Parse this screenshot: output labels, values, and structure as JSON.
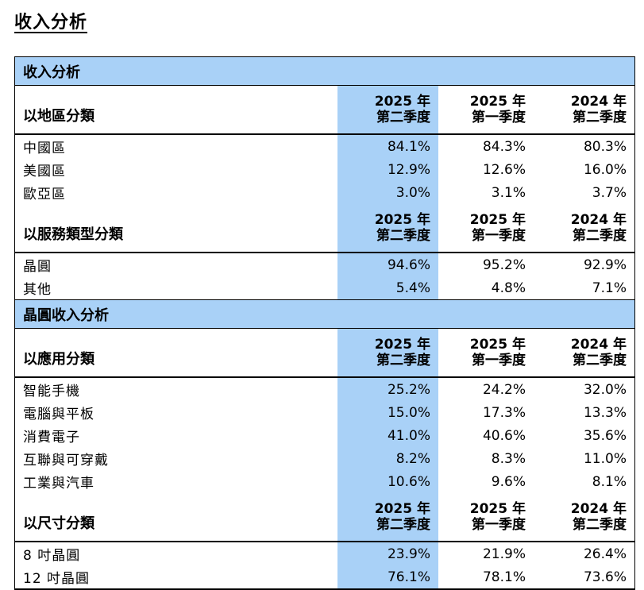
{
  "page_title": "收入分析",
  "table": {
    "section_title": "收入分析",
    "period_headers": [
      {
        "year": "2025 年",
        "quarter": "第二季度"
      },
      {
        "year": "2025 年",
        "quarter": "第一季度"
      },
      {
        "year": "2024 年",
        "quarter": "第二季度"
      }
    ],
    "groups": [
      {
        "label": "以地區分類",
        "rows": [
          {
            "name": "中國區",
            "values": [
              "84.1%",
              "84.3%",
              "80.3%"
            ]
          },
          {
            "name": "美國區",
            "values": [
              "12.9%",
              "12.6%",
              "16.0%"
            ]
          },
          {
            "name": "歐亞區",
            "values": [
              "3.0%",
              "3.1%",
              "3.7%"
            ]
          }
        ]
      },
      {
        "label": "以服務類型分類",
        "rows": [
          {
            "name": "晶圓",
            "values": [
              "94.6%",
              "95.2%",
              "92.9%"
            ]
          },
          {
            "name": "其他",
            "values": [
              "5.4%",
              "4.8%",
              "7.1%"
            ]
          }
        ]
      }
    ],
    "section2_title": "晶圓收入分析",
    "groups2": [
      {
        "label": "以應用分類",
        "rows": [
          {
            "name": "智能手機",
            "values": [
              "25.2%",
              "24.2%",
              "32.0%"
            ]
          },
          {
            "name": "電腦與平板",
            "values": [
              "15.0%",
              "17.3%",
              "13.3%"
            ]
          },
          {
            "name": "消費電子",
            "values": [
              "41.0%",
              "40.6%",
              "35.6%"
            ]
          },
          {
            "name": "互聯與可穿戴",
            "values": [
              "8.2%",
              "8.3%",
              "11.0%"
            ]
          },
          {
            "name": "工業與汽車",
            "values": [
              "10.6%",
              "9.6%",
              "8.1%"
            ]
          }
        ]
      },
      {
        "label": "以尺寸分類",
        "rows": [
          {
            "name": "8 吋晶圓",
            "values": [
              "23.9%",
              "21.9%",
              "26.4%"
            ]
          },
          {
            "name": "12 吋晶圓",
            "values": [
              "76.1%",
              "78.1%",
              "73.6%"
            ]
          }
        ]
      }
    ]
  },
  "colors": {
    "header_fill": "#a9d1f7",
    "highlight_column": "#a9d1f7",
    "border": "#000000"
  }
}
